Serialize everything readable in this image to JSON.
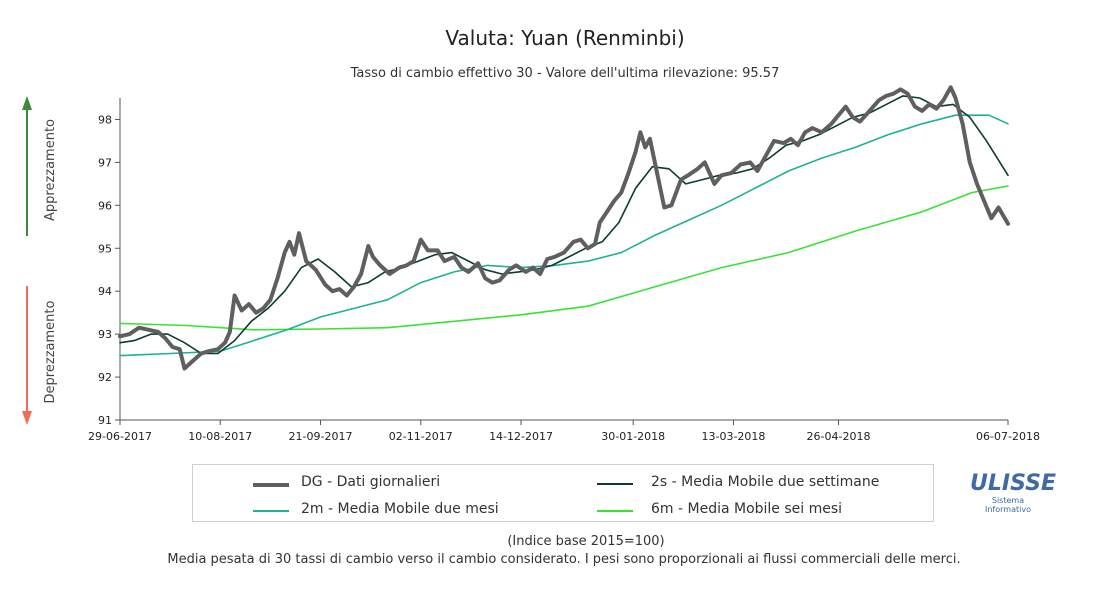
{
  "chart_data": {
    "type": "line",
    "title": "Valuta: Yuan (Renminbi)",
    "subtitle": "Tasso di cambio effettivo 30 - Valore dell'ultima rilevazione: 95.57",
    "ylim": [
      91,
      98.5
    ],
    "yticks": [
      91,
      92,
      93,
      94,
      95,
      96,
      97,
      98
    ],
    "x_tick_labels": [
      "29-06-2017",
      "10-08-2017",
      "21-09-2017",
      "02-11-2017",
      "14-12-2017",
      "30-01-2018",
      "13-03-2018",
      "26-04-2018",
      "06-07-2018"
    ],
    "x_tick_dates": [
      "2017-06-29",
      "2017-08-10",
      "2017-09-21",
      "2017-11-02",
      "2017-12-14",
      "2018-01-30",
      "2018-03-13",
      "2018-04-26",
      "2018-07-06"
    ],
    "arrow_up_label": "Apprezzamento",
    "arrow_down_label": "Deprezzamento",
    "arrow_up_color": "#3a8a3a",
    "arrow_down_color": "#f26a5a",
    "series": [
      {
        "name": "DG - Dati giornalieri",
        "color": "#5f5f5f",
        "points": [
          [
            "2017-06-29",
            92.95
          ],
          [
            "2017-07-03",
            93.0
          ],
          [
            "2017-07-07",
            93.15
          ],
          [
            "2017-07-11",
            93.1
          ],
          [
            "2017-07-15",
            93.05
          ],
          [
            "2017-07-18",
            92.9
          ],
          [
            "2017-07-21",
            92.7
          ],
          [
            "2017-07-24",
            92.65
          ],
          [
            "2017-07-26",
            92.2
          ],
          [
            "2017-07-29",
            92.35
          ],
          [
            "2017-08-02",
            92.55
          ],
          [
            "2017-08-05",
            92.6
          ],
          [
            "2017-08-09",
            92.65
          ],
          [
            "2017-08-12",
            92.8
          ],
          [
            "2017-08-14",
            93.05
          ],
          [
            "2017-08-16",
            93.9
          ],
          [
            "2017-08-19",
            93.55
          ],
          [
            "2017-08-22",
            93.7
          ],
          [
            "2017-08-25",
            93.5
          ],
          [
            "2017-08-28",
            93.6
          ],
          [
            "2017-08-31",
            93.8
          ],
          [
            "2017-09-03",
            94.3
          ],
          [
            "2017-09-06",
            94.9
          ],
          [
            "2017-09-08",
            95.15
          ],
          [
            "2017-09-10",
            94.85
          ],
          [
            "2017-09-12",
            95.35
          ],
          [
            "2017-09-15",
            94.7
          ],
          [
            "2017-09-19",
            94.5
          ],
          [
            "2017-09-23",
            94.15
          ],
          [
            "2017-09-26",
            94.0
          ],
          [
            "2017-09-29",
            94.05
          ],
          [
            "2017-10-02",
            93.9
          ],
          [
            "2017-10-05",
            94.1
          ],
          [
            "2017-10-08",
            94.4
          ],
          [
            "2017-10-11",
            95.05
          ],
          [
            "2017-10-13",
            94.8
          ],
          [
            "2017-10-16",
            94.6
          ],
          [
            "2017-10-20",
            94.4
          ],
          [
            "2017-10-24",
            94.55
          ],
          [
            "2017-10-27",
            94.6
          ],
          [
            "2017-10-30",
            94.7
          ],
          [
            "2017-11-02",
            95.2
          ],
          [
            "2017-11-05",
            94.95
          ],
          [
            "2017-11-09",
            94.95
          ],
          [
            "2017-11-12",
            94.7
          ],
          [
            "2017-11-16",
            94.8
          ],
          [
            "2017-11-19",
            94.55
          ],
          [
            "2017-11-22",
            94.45
          ],
          [
            "2017-11-26",
            94.65
          ],
          [
            "2017-11-29",
            94.3
          ],
          [
            "2017-12-02",
            94.2
          ],
          [
            "2017-12-05",
            94.25
          ],
          [
            "2017-12-09",
            94.5
          ],
          [
            "2017-12-12",
            94.6
          ],
          [
            "2017-12-16",
            94.45
          ],
          [
            "2017-12-19",
            94.55
          ],
          [
            "2017-12-22",
            94.4
          ],
          [
            "2017-12-25",
            94.75
          ],
          [
            "2017-12-28",
            94.8
          ],
          [
            "2018-01-01",
            94.9
          ],
          [
            "2018-01-05",
            95.15
          ],
          [
            "2018-01-08",
            95.2
          ],
          [
            "2018-01-11",
            95.0
          ],
          [
            "2018-01-14",
            95.1
          ],
          [
            "2018-01-16",
            95.6
          ],
          [
            "2018-01-19",
            95.85
          ],
          [
            "2018-01-22",
            96.1
          ],
          [
            "2018-01-25",
            96.3
          ],
          [
            "2018-01-28",
            96.75
          ],
          [
            "2018-01-31",
            97.25
          ],
          [
            "2018-02-02",
            97.7
          ],
          [
            "2018-02-04",
            97.35
          ],
          [
            "2018-02-06",
            97.55
          ],
          [
            "2018-02-09",
            96.75
          ],
          [
            "2018-02-12",
            95.95
          ],
          [
            "2018-02-15",
            96.0
          ],
          [
            "2018-02-19",
            96.6
          ],
          [
            "2018-02-22",
            96.7
          ],
          [
            "2018-02-26",
            96.85
          ],
          [
            "2018-03-01",
            97.0
          ],
          [
            "2018-03-05",
            96.5
          ],
          [
            "2018-03-08",
            96.7
          ],
          [
            "2018-03-12",
            96.75
          ],
          [
            "2018-03-16",
            96.95
          ],
          [
            "2018-03-20",
            97.0
          ],
          [
            "2018-03-23",
            96.8
          ],
          [
            "2018-03-27",
            97.2
          ],
          [
            "2018-03-30",
            97.5
          ],
          [
            "2018-04-03",
            97.45
          ],
          [
            "2018-04-06",
            97.55
          ],
          [
            "2018-04-09",
            97.4
          ],
          [
            "2018-04-12",
            97.7
          ],
          [
            "2018-04-15",
            97.8
          ],
          [
            "2018-04-19",
            97.7
          ],
          [
            "2018-04-23",
            97.9
          ],
          [
            "2018-04-26",
            98.1
          ],
          [
            "2018-04-29",
            98.3
          ],
          [
            "2018-05-02",
            98.05
          ],
          [
            "2018-05-05",
            97.95
          ],
          [
            "2018-05-09",
            98.2
          ],
          [
            "2018-05-13",
            98.45
          ],
          [
            "2018-05-16",
            98.55
          ],
          [
            "2018-05-19",
            98.6
          ],
          [
            "2018-05-22",
            98.7
          ],
          [
            "2018-05-25",
            98.6
          ],
          [
            "2018-05-28",
            98.3
          ],
          [
            "2018-05-31",
            98.2
          ],
          [
            "2018-06-03",
            98.35
          ],
          [
            "2018-06-06",
            98.25
          ],
          [
            "2018-06-09",
            98.45
          ],
          [
            "2018-06-12",
            98.75
          ],
          [
            "2018-06-14",
            98.5
          ],
          [
            "2018-06-17",
            97.9
          ],
          [
            "2018-06-20",
            97.0
          ],
          [
            "2018-06-23",
            96.5
          ],
          [
            "2018-06-26",
            96.1
          ],
          [
            "2018-06-29",
            95.7
          ],
          [
            "2018-07-02",
            95.95
          ],
          [
            "2018-07-06",
            95.57
          ]
        ]
      },
      {
        "name": "2s - Media Mobile due settimane",
        "color": "#0e3b35",
        "points": [
          [
            "2017-06-29",
            92.8
          ],
          [
            "2017-07-05",
            92.85
          ],
          [
            "2017-07-12",
            93.0
          ],
          [
            "2017-07-19",
            93.0
          ],
          [
            "2017-07-26",
            92.8
          ],
          [
            "2017-08-02",
            92.55
          ],
          [
            "2017-08-09",
            92.55
          ],
          [
            "2017-08-16",
            92.85
          ],
          [
            "2017-08-23",
            93.3
          ],
          [
            "2017-08-30",
            93.6
          ],
          [
            "2017-09-06",
            94.0
          ],
          [
            "2017-09-13",
            94.55
          ],
          [
            "2017-09-20",
            94.75
          ],
          [
            "2017-09-27",
            94.45
          ],
          [
            "2017-10-04",
            94.1
          ],
          [
            "2017-10-11",
            94.2
          ],
          [
            "2017-10-18",
            94.45
          ],
          [
            "2017-10-25",
            94.55
          ],
          [
            "2017-11-01",
            94.7
          ],
          [
            "2017-11-08",
            94.85
          ],
          [
            "2017-11-15",
            94.9
          ],
          [
            "2017-11-22",
            94.7
          ],
          [
            "2017-11-29",
            94.5
          ],
          [
            "2017-12-06",
            94.4
          ],
          [
            "2017-12-13",
            94.45
          ],
          [
            "2017-12-20",
            94.5
          ],
          [
            "2017-12-27",
            94.6
          ],
          [
            "2018-01-03",
            94.8
          ],
          [
            "2018-01-10",
            95.0
          ],
          [
            "2018-01-17",
            95.15
          ],
          [
            "2018-01-24",
            95.6
          ],
          [
            "2018-01-31",
            96.4
          ],
          [
            "2018-02-07",
            96.9
          ],
          [
            "2018-02-14",
            96.85
          ],
          [
            "2018-02-21",
            96.5
          ],
          [
            "2018-02-28",
            96.6
          ],
          [
            "2018-03-07",
            96.7
          ],
          [
            "2018-03-14",
            96.75
          ],
          [
            "2018-03-21",
            96.85
          ],
          [
            "2018-03-28",
            97.1
          ],
          [
            "2018-04-04",
            97.4
          ],
          [
            "2018-04-11",
            97.5
          ],
          [
            "2018-04-18",
            97.65
          ],
          [
            "2018-04-25",
            97.85
          ],
          [
            "2018-05-02",
            98.05
          ],
          [
            "2018-05-09",
            98.15
          ],
          [
            "2018-05-16",
            98.35
          ],
          [
            "2018-05-23",
            98.55
          ],
          [
            "2018-05-30",
            98.5
          ],
          [
            "2018-06-06",
            98.3
          ],
          [
            "2018-06-13",
            98.35
          ],
          [
            "2018-06-20",
            98.05
          ],
          [
            "2018-06-27",
            97.5
          ],
          [
            "2018-07-06",
            96.7
          ]
        ]
      },
      {
        "name": "2m - Media Mobile due mesi",
        "color": "#1fb197",
        "points": [
          [
            "2017-06-29",
            92.5
          ],
          [
            "2017-07-20",
            92.55
          ],
          [
            "2017-08-10",
            92.6
          ],
          [
            "2017-08-24",
            92.85
          ],
          [
            "2017-09-07",
            93.1
          ],
          [
            "2017-09-21",
            93.4
          ],
          [
            "2017-10-05",
            93.6
          ],
          [
            "2017-10-19",
            93.8
          ],
          [
            "2017-11-02",
            94.2
          ],
          [
            "2017-11-16",
            94.45
          ],
          [
            "2017-11-30",
            94.6
          ],
          [
            "2017-12-14",
            94.55
          ],
          [
            "2017-12-28",
            94.6
          ],
          [
            "2018-01-11",
            94.7
          ],
          [
            "2018-01-25",
            94.9
          ],
          [
            "2018-02-08",
            95.3
          ],
          [
            "2018-02-22",
            95.65
          ],
          [
            "2018-03-08",
            96.0
          ],
          [
            "2018-03-22",
            96.4
          ],
          [
            "2018-04-05",
            96.8
          ],
          [
            "2018-04-19",
            97.1
          ],
          [
            "2018-05-03",
            97.35
          ],
          [
            "2018-05-17",
            97.65
          ],
          [
            "2018-05-31",
            97.9
          ],
          [
            "2018-06-14",
            98.1
          ],
          [
            "2018-06-28",
            98.1
          ],
          [
            "2018-07-06",
            97.9
          ]
        ]
      },
      {
        "name": "6m - Media Mobile sei mesi",
        "color": "#39e236",
        "points": [
          [
            "2017-06-29",
            93.25
          ],
          [
            "2017-07-27",
            93.2
          ],
          [
            "2017-08-24",
            93.1
          ],
          [
            "2017-09-21",
            93.12
          ],
          [
            "2017-10-19",
            93.15
          ],
          [
            "2017-11-16",
            93.3
          ],
          [
            "2017-12-14",
            93.45
          ],
          [
            "2018-01-11",
            93.65
          ],
          [
            "2018-02-08",
            94.1
          ],
          [
            "2018-03-08",
            94.55
          ],
          [
            "2018-04-05",
            94.9
          ],
          [
            "2018-05-03",
            95.4
          ],
          [
            "2018-05-31",
            95.85
          ],
          [
            "2018-06-21",
            96.3
          ],
          [
            "2018-07-06",
            96.45
          ]
        ]
      }
    ]
  },
  "legend": {
    "dg": "DG - Dati giornalieri",
    "s2": "2s - Media Mobile due settimane",
    "m2": "2m - Media Mobile due mesi",
    "m6": "6m - Media Mobile sei mesi"
  },
  "logo": {
    "word": "ULISSE",
    "sub1": "Sistema",
    "sub2": "Informativo"
  },
  "footer": {
    "line1": "(Indice base 2015=100)",
    "line2": "Media pesata di 30 tassi di cambio verso il cambio considerato. I pesi sono proporzionali ai flussi commerciali delle merci."
  }
}
